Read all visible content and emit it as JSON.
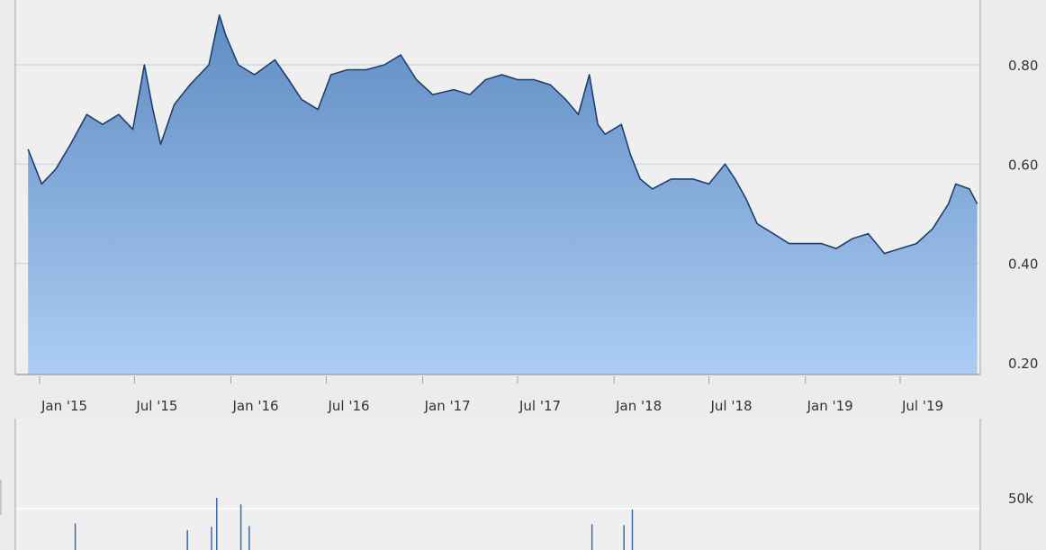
{
  "colors": {
    "background": "#ececec",
    "plot_background": "#efefef",
    "gridline": "#c9d3dd",
    "area_top": "#5f8cc2",
    "area_bottom": "#acccf3",
    "line": "#1d3f6e",
    "volume_bar": "#3d6aa4",
    "label": "#333333"
  },
  "chart_data": [
    {
      "type": "area",
      "title": "",
      "xlabel": "",
      "ylabel": "",
      "ylim": [
        0.2,
        0.95
      ],
      "yticks": [
        "0.20",
        "0.40",
        "0.60",
        "0.80"
      ],
      "ytick_values": [
        0.2,
        0.4,
        0.6,
        0.8
      ],
      "xticks": [
        "Jan '15",
        "Jul '15",
        "Jan '16",
        "Jul '16",
        "Jan '17",
        "Jul '17",
        "Jan '18",
        "Jul '18",
        "Jan '19",
        "Jul '19"
      ],
      "xtick_dates": [
        "2015-01-01",
        "2015-07-01",
        "2016-01-01",
        "2016-07-01",
        "2017-01-01",
        "2017-07-01",
        "2018-01-01",
        "2018-07-01",
        "2019-01-01",
        "2019-07-01"
      ],
      "grid": true,
      "legend": "none",
      "series": [
        {
          "x": [
            "2014-12-10",
            "2015-01-05",
            "2015-02-01",
            "2015-03-01",
            "2015-04-01",
            "2015-05-01",
            "2015-06-01",
            "2015-06-28",
            "2015-07-20",
            "2015-08-05",
            "2015-08-20",
            "2015-09-15",
            "2015-10-15",
            "2015-11-20",
            "2015-12-10",
            "2015-12-22",
            "2016-01-15",
            "2016-02-15",
            "2016-03-25",
            "2016-04-20",
            "2016-05-15",
            "2016-06-15",
            "2016-07-10",
            "2016-08-10",
            "2016-09-15",
            "2016-10-20",
            "2016-11-20",
            "2016-12-20",
            "2017-01-20",
            "2017-03-01",
            "2017-04-01",
            "2017-05-01",
            "2017-06-01",
            "2017-07-01",
            "2017-08-01",
            "2017-09-01",
            "2017-10-01",
            "2017-10-25",
            "2017-11-15",
            "2017-12-01",
            "2017-12-15",
            "2018-01-15",
            "2018-02-01",
            "2018-02-20",
            "2018-03-15",
            "2018-04-20",
            "2018-06-01",
            "2018-07-01",
            "2018-08-01",
            "2018-08-20",
            "2018-09-10",
            "2018-10-01",
            "2018-11-01",
            "2018-12-01",
            "2019-01-01",
            "2019-02-01",
            "2019-03-01",
            "2019-04-01",
            "2019-05-01",
            "2019-06-01",
            "2019-07-01",
            "2019-08-01",
            "2019-09-01",
            "2019-10-01",
            "2019-10-15",
            "2019-11-10",
            "2019-11-25"
          ],
          "values": [
            0.63,
            0.56,
            0.59,
            0.64,
            0.7,
            0.68,
            0.7,
            0.67,
            0.8,
            0.71,
            0.64,
            0.72,
            0.76,
            0.8,
            0.9,
            0.86,
            0.8,
            0.78,
            0.81,
            0.77,
            0.73,
            0.71,
            0.78,
            0.79,
            0.79,
            0.8,
            0.82,
            0.77,
            0.74,
            0.75,
            0.74,
            0.77,
            0.78,
            0.77,
            0.77,
            0.76,
            0.73,
            0.7,
            0.78,
            0.68,
            0.66,
            0.68,
            0.62,
            0.57,
            0.55,
            0.57,
            0.57,
            0.56,
            0.6,
            0.57,
            0.53,
            0.48,
            0.46,
            0.44,
            0.44,
            0.44,
            0.43,
            0.45,
            0.46,
            0.42,
            0.43,
            0.44,
            0.47,
            0.52,
            0.56,
            0.55,
            0.52
          ]
        }
      ]
    },
    {
      "type": "bar",
      "title": "",
      "xlabel": "",
      "ylabel": "",
      "ylim": [
        0,
        60000
      ],
      "yticks": [
        "50k"
      ],
      "ytick_values": [
        50000
      ],
      "grid": true,
      "legend": "none",
      "series": [
        {
          "x": [
            "2015-03-10",
            "2015-10-10",
            "2015-11-25",
            "2015-12-05",
            "2016-01-20",
            "2016-02-05",
            "2017-11-20",
            "2018-01-20",
            "2018-02-05"
          ],
          "values": [
            32000,
            24000,
            28000,
            63000,
            55000,
            29000,
            31000,
            30000,
            49000
          ]
        }
      ]
    }
  ]
}
